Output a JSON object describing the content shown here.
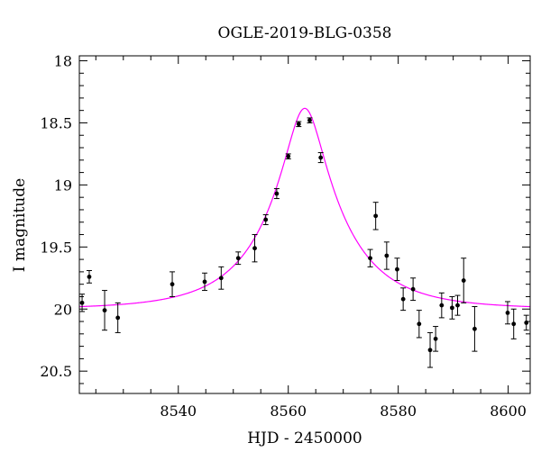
{
  "chart_data": {
    "type": "scatter",
    "title": "OGLE-2019-BLG-0358",
    "xlabel": "HJD - 2450000",
    "ylabel": "I magnitude",
    "xlim": [
      8522,
      8604
    ],
    "ylim": [
      20.68,
      17.96
    ],
    "y_inverted": true,
    "grid": false,
    "colors": {
      "points": "#000000",
      "model": "#ff00ff",
      "axes": "#000000"
    },
    "xticks": [
      {
        "value": 8540,
        "label": "8540"
      },
      {
        "value": 8560,
        "label": "8560"
      },
      {
        "value": 8580,
        "label": "8580"
      },
      {
        "value": 8600,
        "label": "8600"
      }
    ],
    "yticks": [
      {
        "value": 18,
        "label": "18"
      },
      {
        "value": 18.5,
        "label": "18.5"
      },
      {
        "value": 19,
        "label": "19"
      },
      {
        "value": 19.5,
        "label": "19.5"
      },
      {
        "value": 20,
        "label": "20"
      },
      {
        "value": 20.5,
        "label": "20.5"
      }
    ],
    "points": [
      {
        "x": 8522.5,
        "y": 19.95,
        "err": 0.07
      },
      {
        "x": 8523.8,
        "y": 19.74,
        "err": 0.05
      },
      {
        "x": 8526.6,
        "y": 20.01,
        "err": 0.16
      },
      {
        "x": 8529.0,
        "y": 20.07,
        "err": 0.12
      },
      {
        "x": 8538.9,
        "y": 19.8,
        "err": 0.1
      },
      {
        "x": 8544.8,
        "y": 19.78,
        "err": 0.07
      },
      {
        "x": 8547.8,
        "y": 19.75,
        "err": 0.09
      },
      {
        "x": 8550.9,
        "y": 19.59,
        "err": 0.05
      },
      {
        "x": 8553.9,
        "y": 19.51,
        "err": 0.11
      },
      {
        "x": 8555.9,
        "y": 19.28,
        "err": 0.04
      },
      {
        "x": 8557.9,
        "y": 19.07,
        "err": 0.04
      },
      {
        "x": 8560.0,
        "y": 18.77,
        "err": 0.02
      },
      {
        "x": 8561.9,
        "y": 18.51,
        "err": 0.02
      },
      {
        "x": 8563.9,
        "y": 18.48,
        "err": 0.02
      },
      {
        "x": 8565.9,
        "y": 18.78,
        "err": 0.04
      },
      {
        "x": 8574.9,
        "y": 19.59,
        "err": 0.07
      },
      {
        "x": 8575.9,
        "y": 19.25,
        "err": 0.11
      },
      {
        "x": 8577.9,
        "y": 19.57,
        "err": 0.11
      },
      {
        "x": 8579.8,
        "y": 19.68,
        "err": 0.09
      },
      {
        "x": 8580.9,
        "y": 19.92,
        "err": 0.09
      },
      {
        "x": 8582.7,
        "y": 19.84,
        "err": 0.09
      },
      {
        "x": 8583.8,
        "y": 20.12,
        "err": 0.11
      },
      {
        "x": 8585.8,
        "y": 20.33,
        "err": 0.14
      },
      {
        "x": 8586.8,
        "y": 20.24,
        "err": 0.1
      },
      {
        "x": 8587.9,
        "y": 19.97,
        "err": 0.1
      },
      {
        "x": 8589.8,
        "y": 19.99,
        "err": 0.09
      },
      {
        "x": 8590.8,
        "y": 19.97,
        "err": 0.08
      },
      {
        "x": 8591.9,
        "y": 19.77,
        "err": 0.18
      },
      {
        "x": 8593.9,
        "y": 20.16,
        "err": 0.18
      },
      {
        "x": 8599.9,
        "y": 20.03,
        "err": 0.09
      },
      {
        "x": 8601.0,
        "y": 20.12,
        "err": 0.12
      },
      {
        "x": 8603.3,
        "y": 20.11,
        "err": 0.06
      }
    ],
    "model": {
      "type": "pspl",
      "t0": 8563.0,
      "u0": 0.23,
      "tE": 14.0,
      "I_baseline": 20.0
    }
  }
}
